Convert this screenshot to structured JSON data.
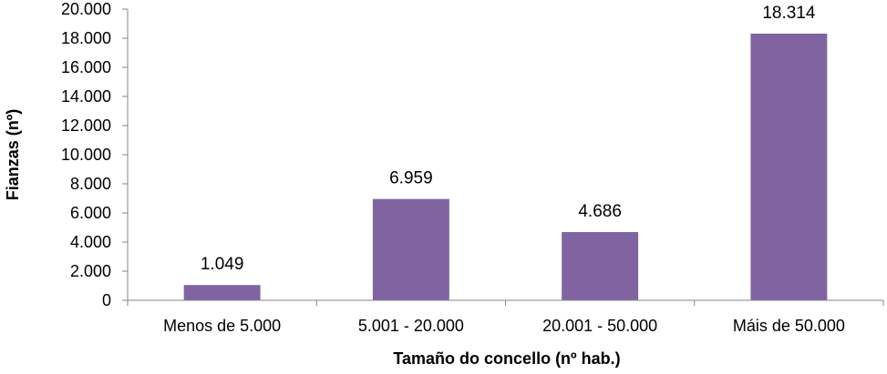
{
  "chart_data": {
    "type": "bar",
    "title": "",
    "xlabel": "Tamaño do concello (nº hab.)",
    "ylabel": "Fianzas (nº)",
    "categories": [
      "Menos de 5.000",
      "5.001 - 20.000",
      "20.001 - 50.000",
      "Máis de 50.000"
    ],
    "values": [
      1049,
      6959,
      4686,
      18314
    ],
    "data_labels": [
      "1.049",
      "6.959",
      "4.686",
      "18.314"
    ],
    "ylim": [
      0,
      20000
    ],
    "yticks": [
      0,
      2000,
      4000,
      6000,
      8000,
      10000,
      12000,
      14000,
      16000,
      18000,
      20000
    ],
    "ytick_labels": [
      "0",
      "2.000",
      "4.000",
      "6.000",
      "8.000",
      "10.000",
      "12.000",
      "14.000",
      "16.000",
      "18.000",
      "20.000"
    ],
    "grid": false,
    "legend": "none",
    "bar_color": "#8064A2",
    "axis_color": "#868686"
  }
}
